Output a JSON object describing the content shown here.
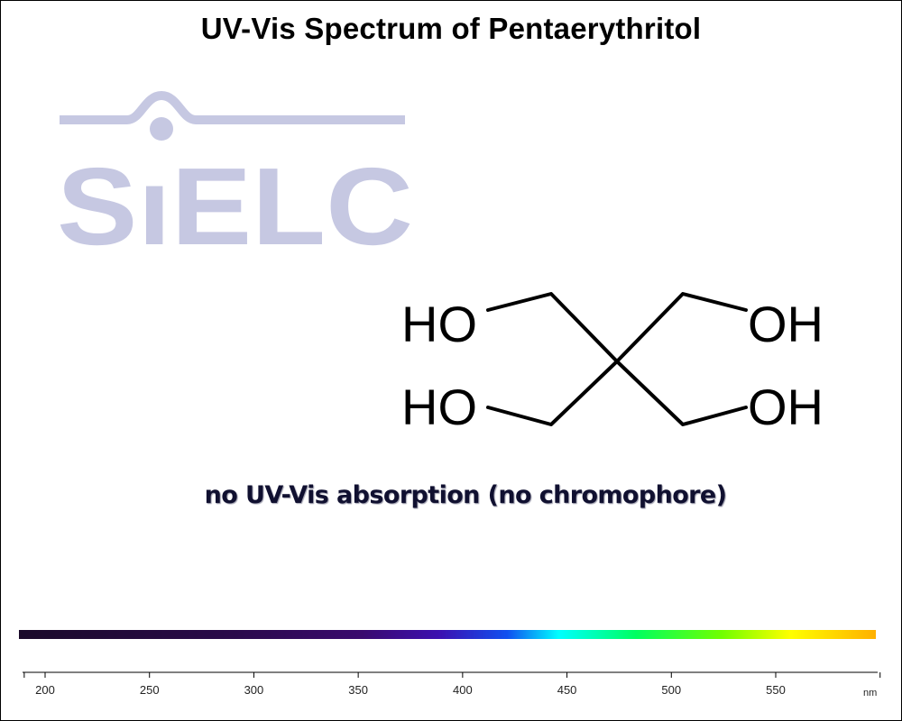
{
  "title": "UV-Vis Spectrum of Pentaerythritol",
  "logo": {
    "text": "SIELC",
    "color": "#c6c8e2"
  },
  "molecule": {
    "groups": [
      "HO",
      "HO",
      "OH",
      "OH"
    ]
  },
  "note": "no UV-Vis absorption (no chromophore)",
  "chart_data": {
    "type": "line",
    "title": "UV-Vis Spectrum of Pentaerythritol",
    "xlabel": "nm",
    "ylabel": "",
    "xlim": [
      190,
      600
    ],
    "x_ticks": [
      200,
      250,
      300,
      350,
      400,
      450,
      500,
      550
    ],
    "x_unit": "nm",
    "series": [],
    "annotations": [
      "no UV-Vis absorption (no chromophore)"
    ],
    "grid": false,
    "legend": "none"
  }
}
